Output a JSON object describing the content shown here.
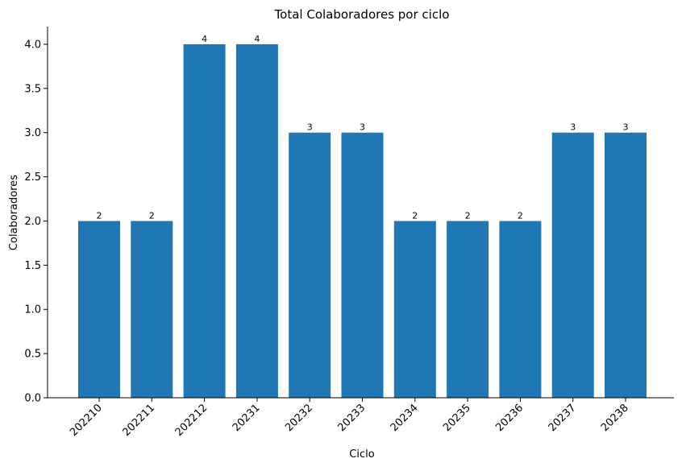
{
  "chart_data": {
    "type": "bar",
    "title": "Total Colaboradores por ciclo",
    "xlabel": "Ciclo",
    "ylabel": "Colaboradores",
    "categories": [
      "202210",
      "202211",
      "202212",
      "20231",
      "20232",
      "20233",
      "20234",
      "20235",
      "20236",
      "20237",
      "20238"
    ],
    "values": [
      2,
      2,
      4,
      4,
      3,
      3,
      2,
      2,
      2,
      3,
      3
    ],
    "ylim": [
      0,
      4.2
    ],
    "yticks": [
      "0.0",
      "0.5",
      "1.0",
      "1.5",
      "2.0",
      "2.5",
      "3.0",
      "3.5",
      "4.0"
    ],
    "bar_color": "#1f77b4",
    "grid": false,
    "legend": "none",
    "data_labels": true
  }
}
